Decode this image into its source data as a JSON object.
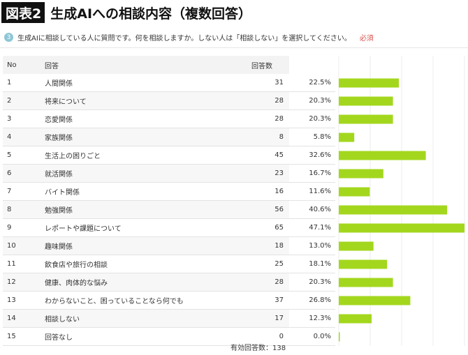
{
  "header": {
    "figure_label": "図表2",
    "title": "生成AIへの相談内容（複数回答）"
  },
  "question": {
    "number": "3",
    "text": "生成AIに相談している人に質問です。何を相談しますか。しない人は「相談しない」を選択してください。",
    "required": "必須"
  },
  "table": {
    "col_no": "No",
    "col_answer": "回答",
    "col_count": "回答数"
  },
  "footer": "有効回答数：138",
  "colors": {
    "bar": "#a3d71e",
    "header_bg": "#f3f3f3",
    "row_alt": "#f7f7f7"
  },
  "chart_data": {
    "type": "bar",
    "orientation": "horizontal",
    "total_respondents": 138,
    "rows": [
      {
        "no": "1",
        "label": "人間関係",
        "count": "31",
        "percent": "22.5%",
        "value": 22.5
      },
      {
        "no": "2",
        "label": "将来について",
        "count": "28",
        "percent": "20.3%",
        "value": 20.3
      },
      {
        "no": "3",
        "label": "恋愛関係",
        "count": "28",
        "percent": "20.3%",
        "value": 20.3
      },
      {
        "no": "4",
        "label": "家族関係",
        "count": "8",
        "percent": "5.8%",
        "value": 5.8
      },
      {
        "no": "5",
        "label": "生活上の困りごと",
        "count": "45",
        "percent": "32.6%",
        "value": 32.6
      },
      {
        "no": "6",
        "label": "就活関係",
        "count": "23",
        "percent": "16.7%",
        "value": 16.7
      },
      {
        "no": "7",
        "label": "バイト関係",
        "count": "16",
        "percent": "11.6%",
        "value": 11.6
      },
      {
        "no": "8",
        "label": "勉強関係",
        "count": "56",
        "percent": "40.6%",
        "value": 40.6
      },
      {
        "no": "9",
        "label": "レポートや課題について",
        "count": "65",
        "percent": "47.1%",
        "value": 47.1
      },
      {
        "no": "10",
        "label": "趣味関係",
        "count": "18",
        "percent": "13.0%",
        "value": 13.0
      },
      {
        "no": "11",
        "label": "飲食店や旅行の相談",
        "count": "25",
        "percent": "18.1%",
        "value": 18.1
      },
      {
        "no": "12",
        "label": "健康、肉体的な悩み",
        "count": "28",
        "percent": "20.3%",
        "value": 20.3
      },
      {
        "no": "13",
        "label": "わからないこと、困っていることなら何でも",
        "count": "37",
        "percent": "26.8%",
        "value": 26.8
      },
      {
        "no": "14",
        "label": "相談しない",
        "count": "17",
        "percent": "12.3%",
        "value": 12.3
      },
      {
        "no": "15",
        "label": "回答なし",
        "count": "0",
        "percent": "0.0%",
        "value": 0.0
      }
    ],
    "xlim": [
      0,
      47.1
    ],
    "grid": true
  }
}
